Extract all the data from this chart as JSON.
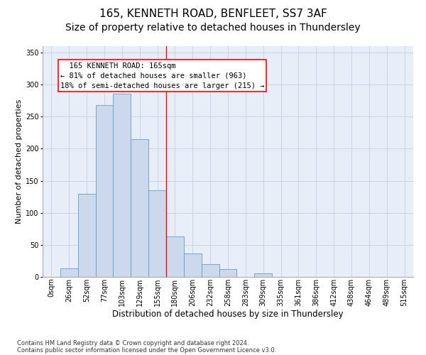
{
  "title1": "165, KENNETH ROAD, BENFLEET, SS7 3AF",
  "title2": "Size of property relative to detached houses in Thundersley",
  "xlabel": "Distribution of detached houses by size in Thundersley",
  "ylabel": "Number of detached properties",
  "categories": [
    "0sqm",
    "26sqm",
    "52sqm",
    "77sqm",
    "103sqm",
    "129sqm",
    "155sqm",
    "180sqm",
    "206sqm",
    "232sqm",
    "258sqm",
    "283sqm",
    "309sqm",
    "335sqm",
    "361sqm",
    "386sqm",
    "412sqm",
    "438sqm",
    "464sqm",
    "489sqm",
    "515sqm"
  ],
  "bar_values": [
    0,
    13,
    130,
    268,
    286,
    215,
    135,
    63,
    37,
    20,
    12,
    0,
    5,
    0,
    0,
    0,
    0,
    0,
    0,
    0,
    0
  ],
  "bar_color": "#ccd9ec",
  "bar_edge_color": "#6699cc",
  "grid_color": "#c8d4e8",
  "background_color": "#e8eef8",
  "vline_color": "red",
  "annotation_text": "  165 KENNETH ROAD: 165sqm  \n← 81% of detached houses are smaller (963)\n18% of semi-detached houses are larger (215) →",
  "annotation_box_color": "white",
  "annotation_box_edge": "red",
  "ylim": [
    0,
    360
  ],
  "yticks": [
    0,
    50,
    100,
    150,
    200,
    250,
    300,
    350
  ],
  "footnote1": "Contains HM Land Registry data © Crown copyright and database right 2024.",
  "footnote2": "Contains public sector information licensed under the Open Government Licence v3.0.",
  "title1_fontsize": 11,
  "title2_fontsize": 10,
  "xlabel_fontsize": 8.5,
  "ylabel_fontsize": 8,
  "tick_fontsize": 7,
  "annot_fontsize": 7.5
}
